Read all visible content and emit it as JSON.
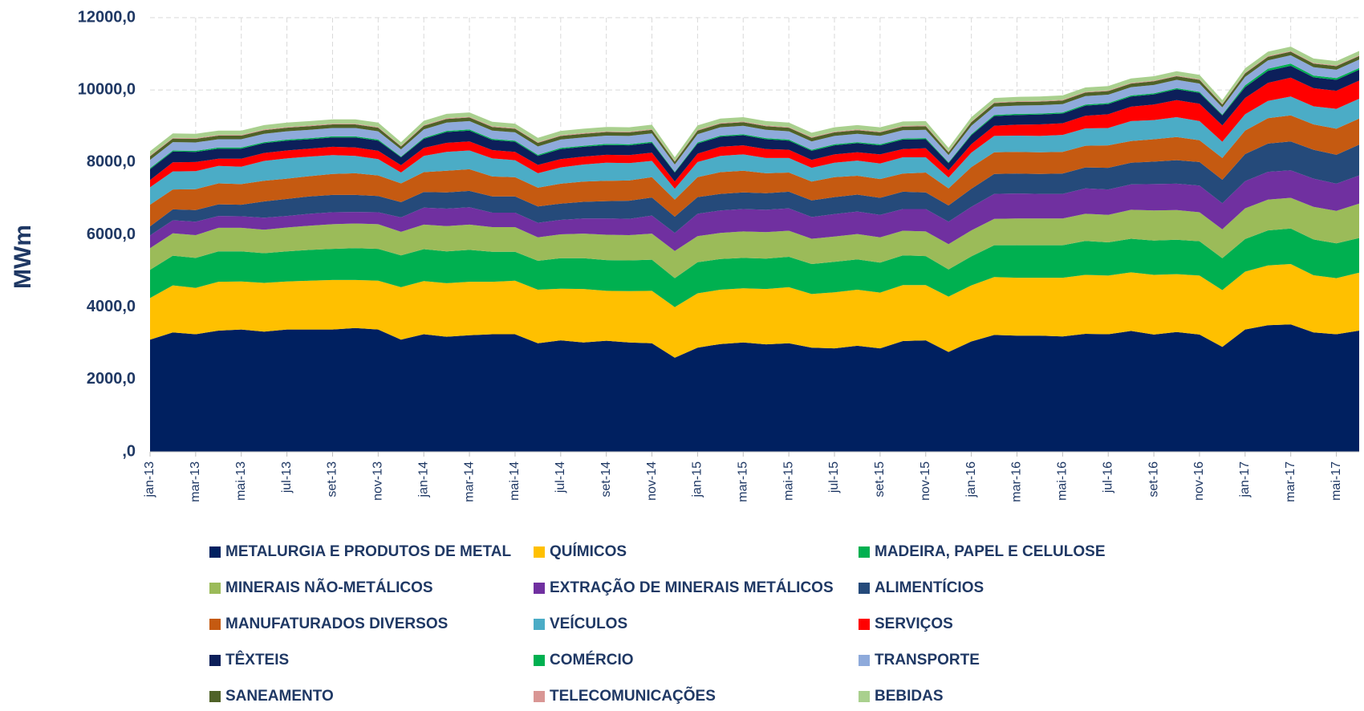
{
  "chart_data": {
    "type": "stacked-area",
    "y_label": "MWm",
    "categories": [
      "jan-13",
      null,
      "mar-13",
      null,
      "mai-13",
      null,
      "jul-13",
      null,
      "set-13",
      null,
      "nov-13",
      null,
      "jan-14",
      null,
      "mar-14",
      null,
      "mai-14",
      null,
      "jul-14",
      null,
      "set-14",
      null,
      "nov-14",
      null,
      "jan-15",
      null,
      "mar-15",
      null,
      "mai-15",
      null,
      "jul-15",
      null,
      "set-15",
      null,
      "nov-15",
      null,
      "jan-16",
      null,
      "mar-16",
      null,
      "mai-16",
      null,
      "jul-16",
      null,
      "set-16",
      null,
      "nov-16",
      null,
      "jan-17",
      null,
      "mar-17",
      null,
      "mai-17",
      null
    ],
    "ylim": [
      0,
      12000
    ],
    "yticks": [
      {
        "value": 0,
        "label": ",0"
      },
      {
        "value": 2000,
        "label": "2000,0"
      },
      {
        "value": 4000,
        "label": "4000,0"
      },
      {
        "value": 6000,
        "label": "6000,0"
      },
      {
        "value": 8000,
        "label": "8000,0"
      },
      {
        "value": 10000,
        "label": "10000,0"
      },
      {
        "value": 12000,
        "label": "12000,0"
      }
    ],
    "grid": true,
    "legend": "bottom",
    "series": [
      {
        "name": "METALURGIA E PRODUTOS DE METAL",
        "color": "#002060",
        "values": [
          3100,
          3300,
          3250,
          3350,
          3380,
          3320,
          3380,
          3380,
          3380,
          3420,
          3380,
          3100,
          3250,
          3180,
          3220,
          3250,
          3250,
          3000,
          3080,
          3020,
          3070,
          3020,
          3000,
          2600,
          2880,
          2980,
          3020,
          2970,
          3000,
          2880,
          2860,
          2930,
          2860,
          3060,
          3080,
          2760,
          3050,
          3230,
          3210,
          3210,
          3190,
          3260,
          3250,
          3340,
          3240,
          3310,
          3240,
          2900,
          3380,
          3500,
          3520,
          3300,
          3250,
          3350
        ]
      },
      {
        "name": "QUÍMICOS",
        "color": "#ffc000",
        "values": [
          1150,
          1300,
          1280,
          1350,
          1330,
          1350,
          1330,
          1350,
          1370,
          1330,
          1350,
          1450,
          1470,
          1480,
          1480,
          1450,
          1480,
          1480,
          1430,
          1480,
          1380,
          1420,
          1450,
          1400,
          1500,
          1500,
          1500,
          1530,
          1550,
          1480,
          1550,
          1550,
          1540,
          1550,
          1530,
          1530,
          1550,
          1600,
          1600,
          1600,
          1620,
          1630,
          1620,
          1620,
          1650,
          1600,
          1630,
          1570,
          1600,
          1650,
          1670,
          1580,
          1550,
          1600
        ]
      },
      {
        "name": "MADEIRA, PAPEL E CELULOSE",
        "color": "#00b050",
        "values": [
          780,
          820,
          830,
          840,
          830,
          820,
          830,
          850,
          860,
          880,
          880,
          880,
          880,
          880,
          880,
          830,
          800,
          800,
          840,
          850,
          850,
          850,
          860,
          800,
          860,
          850,
          840,
          840,
          840,
          830,
          840,
          840,
          830,
          820,
          800,
          750,
          800,
          880,
          900,
          900,
          900,
          940,
          920,
          930,
          950,
          950,
          950,
          880,
          900,
          970,
          980,
          990,
          960,
          960
        ]
      },
      {
        "name": "MINERAIS NÃO-METÁLICOS",
        "color": "#9bbb59",
        "values": [
          600,
          620,
          630,
          650,
          650,
          650,
          660,
          670,
          680,
          680,
          680,
          650,
          680,
          700,
          700,
          680,
          680,
          650,
          660,
          680,
          700,
          700,
          720,
          750,
          720,
          720,
          730,
          730,
          720,
          700,
          700,
          700,
          700,
          680,
          680,
          700,
          720,
          730,
          740,
          740,
          740,
          750,
          760,
          800,
          830,
          820,
          800,
          800,
          850,
          850,
          850,
          900,
          900,
          950
        ]
      },
      {
        "name": "EXTRAÇÃO DE MINERAIS METÁLICOS",
        "color": "#7030a0",
        "values": [
          350,
          360,
          370,
          330,
          320,
          330,
          320,
          330,
          330,
          320,
          330,
          400,
          470,
          480,
          480,
          400,
          400,
          400,
          400,
          420,
          450,
          450,
          500,
          500,
          620,
          620,
          620,
          620,
          620,
          600,
          620,
          620,
          620,
          600,
          620,
          620,
          650,
          690,
          690,
          680,
          680,
          700,
          700,
          700,
          730,
          730,
          740,
          720,
          750,
          770,
          760,
          780,
          750,
          780
        ]
      },
      {
        "name": "ALIMENTÍCIOS",
        "color": "#254a7a",
        "values": [
          250,
          300,
          320,
          320,
          320,
          450,
          470,
          480,
          480,
          470,
          450,
          420,
          430,
          450,
          450,
          450,
          450,
          450,
          450,
          460,
          480,
          500,
          500,
          450,
          460,
          460,
          460,
          460,
          460,
          460,
          470,
          470,
          470,
          480,
          460,
          450,
          500,
          550,
          550,
          550,
          560,
          580,
          600,
          600,
          620,
          650,
          650,
          650,
          750,
          780,
          800,
          800,
          800,
          850
        ]
      },
      {
        "name": "MANUFATURADOS DIVERSOS",
        "color": "#c55a11",
        "values": [
          600,
          550,
          580,
          580,
          570,
          570,
          560,
          560,
          580,
          600,
          570,
          520,
          550,
          600,
          600,
          550,
          530,
          520,
          550,
          560,
          560,
          560,
          560,
          470,
          550,
          600,
          600,
          550,
          530,
          520,
          550,
          520,
          520,
          500,
          550,
          470,
          600,
          600,
          600,
          600,
          600,
          600,
          620,
          600,
          620,
          640,
          600,
          600,
          650,
          700,
          720,
          700,
          720,
          720
        ]
      },
      {
        "name": "VEÍCULOS",
        "color": "#4bacc6",
        "values": [
          480,
          500,
          500,
          480,
          480,
          550,
          560,
          540,
          520,
          480,
          450,
          300,
          450,
          520,
          520,
          500,
          470,
          400,
          450,
          470,
          500,
          480,
          450,
          300,
          420,
          450,
          450,
          420,
          400,
          380,
          400,
          420,
          430,
          450,
          420,
          300,
          400,
          450,
          450,
          450,
          470,
          480,
          480,
          550,
          530,
          550,
          530,
          450,
          450,
          480,
          520,
          500,
          550,
          550
        ]
      },
      {
        "name": "SERVIÇOS",
        "color": "#ff0000",
        "values": [
          200,
          250,
          250,
          200,
          220,
          220,
          220,
          220,
          230,
          230,
          230,
          200,
          220,
          250,
          250,
          230,
          230,
          230,
          230,
          220,
          220,
          220,
          230,
          200,
          230,
          250,
          250,
          250,
          230,
          220,
          230,
          230,
          250,
          230,
          250,
          200,
          230,
          280,
          300,
          320,
          320,
          350,
          380,
          400,
          430,
          470,
          480,
          450,
          450,
          500,
          520,
          500,
          500,
          500
        ]
      },
      {
        "name": "TÊXTEIS",
        "color": "#0c1f5a",
        "values": [
          300,
          300,
          280,
          280,
          280,
          270,
          270,
          260,
          260,
          280,
          280,
          220,
          250,
          300,
          300,
          280,
          280,
          250,
          280,
          270,
          270,
          270,
          270,
          250,
          280,
          280,
          280,
          270,
          250,
          250,
          250,
          250,
          250,
          260,
          250,
          200,
          250,
          270,
          270,
          270,
          270,
          280,
          280,
          280,
          280,
          300,
          300,
          280,
          300,
          330,
          330,
          300,
          300,
          300
        ]
      },
      {
        "name": "COMÉRCIO",
        "color": "#00b050",
        "values": [
          30,
          30,
          30,
          30,
          30,
          30,
          30,
          30,
          30,
          30,
          30,
          20,
          30,
          30,
          30,
          30,
          30,
          30,
          30,
          30,
          30,
          30,
          30,
          20,
          30,
          30,
          30,
          30,
          30,
          30,
          30,
          30,
          30,
          30,
          30,
          20,
          30,
          30,
          30,
          30,
          30,
          30,
          30,
          30,
          30,
          30,
          30,
          20,
          50,
          60,
          60,
          50,
          50,
          50
        ]
      },
      {
        "name": "TRANSPORTE",
        "color": "#8eaadb",
        "values": [
          230,
          230,
          230,
          230,
          230,
          230,
          230,
          230,
          230,
          230,
          230,
          200,
          230,
          230,
          230,
          230,
          230,
          230,
          230,
          230,
          230,
          230,
          230,
          200,
          230,
          230,
          230,
          230,
          230,
          230,
          230,
          230,
          230,
          230,
          230,
          200,
          230,
          230,
          230,
          230,
          230,
          230,
          230,
          230,
          230,
          230,
          230,
          200,
          230,
          230,
          230,
          230,
          230,
          230
        ]
      },
      {
        "name": "SANEAMENTO",
        "color": "#4f6228",
        "values": [
          100,
          100,
          100,
          100,
          100,
          100,
          100,
          100,
          100,
          100,
          100,
          80,
          100,
          100,
          100,
          100,
          100,
          100,
          100,
          100,
          100,
          100,
          100,
          80,
          100,
          100,
          100,
          100,
          100,
          100,
          100,
          100,
          100,
          100,
          100,
          80,
          100,
          100,
          100,
          100,
          100,
          100,
          100,
          100,
          100,
          100,
          100,
          80,
          100,
          100,
          100,
          100,
          100,
          100
        ]
      },
      {
        "name": "TELECOMUNICAÇÕES",
        "color": "#d99694",
        "values": [
          20,
          20,
          20,
          20,
          20,
          20,
          20,
          20,
          20,
          20,
          20,
          20,
          20,
          20,
          20,
          20,
          20,
          20,
          20,
          20,
          20,
          20,
          20,
          20,
          20,
          20,
          20,
          20,
          20,
          20,
          20,
          20,
          20,
          20,
          20,
          20,
          20,
          20,
          20,
          20,
          20,
          20,
          20,
          20,
          20,
          20,
          20,
          20,
          20,
          20,
          20,
          20,
          20,
          20
        ]
      },
      {
        "name": "BEBIDAS",
        "color": "#a9d08e",
        "values": [
          120,
          120,
          120,
          120,
          120,
          120,
          120,
          120,
          120,
          120,
          120,
          100,
          120,
          120,
          120,
          120,
          120,
          120,
          120,
          120,
          120,
          120,
          120,
          100,
          120,
          120,
          120,
          120,
          120,
          120,
          120,
          120,
          120,
          120,
          120,
          100,
          120,
          120,
          120,
          120,
          120,
          120,
          120,
          120,
          120,
          120,
          120,
          100,
          120,
          120,
          120,
          120,
          120,
          120
        ]
      }
    ]
  }
}
